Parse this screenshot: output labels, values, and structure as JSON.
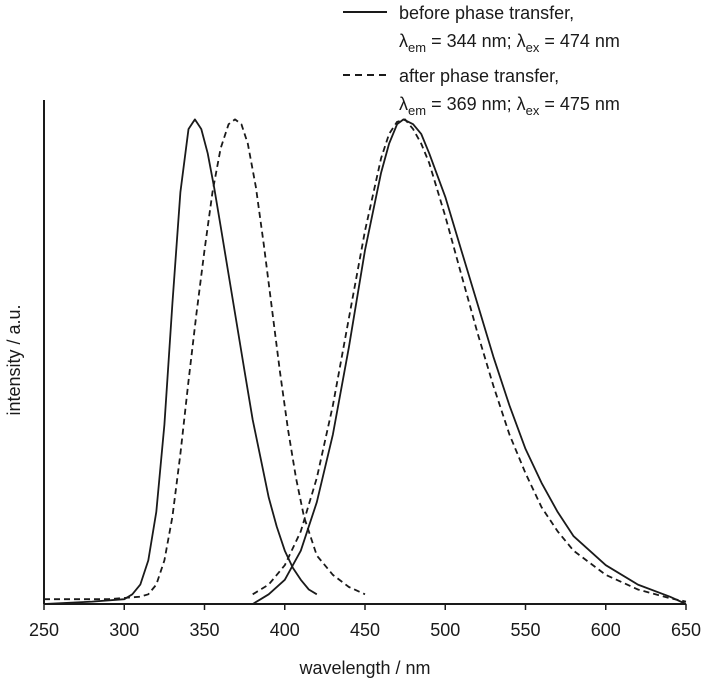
{
  "chart_data": {
    "type": "line",
    "title": "",
    "xlabel": "wavelength / nm",
    "ylabel": "intensity / a.u.",
    "xlim": [
      250,
      650
    ],
    "ylim": [
      0,
      1.04
    ],
    "x_ticks": [
      250,
      300,
      350,
      400,
      450,
      500,
      550,
      600,
      650
    ],
    "grid": false,
    "legend_position": "top-right",
    "legend": [
      {
        "line1": "before phase transfer,",
        "sym1": "λ",
        "sub1": "em",
        "val1": " = 344 nm; ",
        "sym2": "λ",
        "sub2": "ex",
        "val2": " = 474 nm"
      },
      {
        "line1": "after phase transfer,",
        "sym1": "λ",
        "sub1": "em",
        "val1": " = 369 nm; ",
        "sym2": "λ",
        "sub2": "ex",
        "val2": " = 475 nm"
      }
    ],
    "series": [
      {
        "style": "solid",
        "color": "#1a1a1a",
        "role": "excitation",
        "x": [
          250,
          280,
          300,
          305,
          310,
          315,
          320,
          325,
          330,
          335,
          340,
          344,
          348,
          352,
          356,
          360,
          365,
          370,
          375,
          380,
          385,
          390,
          395,
          400,
          405,
          410,
          415,
          420
        ],
        "y": [
          0.0,
          0.005,
          0.01,
          0.02,
          0.04,
          0.09,
          0.19,
          0.37,
          0.62,
          0.85,
          0.98,
          1.0,
          0.98,
          0.93,
          0.86,
          0.78,
          0.68,
          0.58,
          0.48,
          0.38,
          0.3,
          0.22,
          0.16,
          0.11,
          0.075,
          0.05,
          0.03,
          0.02
        ]
      },
      {
        "style": "solid",
        "color": "#1a1a1a",
        "role": "emission",
        "x": [
          380,
          385,
          390,
          400,
          410,
          420,
          430,
          440,
          450,
          460,
          465,
          470,
          474,
          480,
          485,
          490,
          500,
          510,
          520,
          530,
          540,
          550,
          560,
          570,
          580,
          590,
          600,
          620,
          640,
          650
        ],
        "y": [
          0.0,
          0.01,
          0.02,
          0.05,
          0.11,
          0.21,
          0.35,
          0.53,
          0.73,
          0.89,
          0.95,
          0.99,
          1.0,
          0.99,
          0.97,
          0.93,
          0.84,
          0.73,
          0.62,
          0.51,
          0.41,
          0.32,
          0.25,
          0.19,
          0.14,
          0.11,
          0.08,
          0.04,
          0.015,
          0.0
        ]
      },
      {
        "style": "dashed",
        "color": "#1a1a1a",
        "role": "excitation",
        "x": [
          250,
          290,
          310,
          315,
          320,
          325,
          330,
          335,
          340,
          345,
          350,
          355,
          360,
          365,
          369,
          373,
          377,
          382,
          387,
          392,
          397,
          402,
          407,
          412,
          420,
          430,
          440,
          450
        ],
        "y": [
          0.01,
          0.01,
          0.015,
          0.02,
          0.04,
          0.09,
          0.18,
          0.31,
          0.46,
          0.6,
          0.73,
          0.85,
          0.94,
          0.99,
          1.0,
          0.99,
          0.95,
          0.86,
          0.74,
          0.61,
          0.48,
          0.36,
          0.26,
          0.18,
          0.1,
          0.06,
          0.035,
          0.02
        ]
      },
      {
        "style": "dashed",
        "color": "#1a1a1a",
        "role": "emission",
        "x": [
          380,
          390,
          400,
          410,
          420,
          430,
          440,
          450,
          460,
          465,
          470,
          475,
          480,
          485,
          490,
          500,
          510,
          520,
          530,
          540,
          550,
          560,
          570,
          580,
          600,
          620,
          640,
          650
        ],
        "y": [
          0.02,
          0.04,
          0.08,
          0.15,
          0.26,
          0.41,
          0.59,
          0.77,
          0.92,
          0.97,
          0.995,
          1.0,
          0.98,
          0.95,
          0.91,
          0.8,
          0.68,
          0.56,
          0.45,
          0.35,
          0.27,
          0.2,
          0.15,
          0.11,
          0.06,
          0.03,
          0.012,
          0.005
        ]
      }
    ]
  }
}
